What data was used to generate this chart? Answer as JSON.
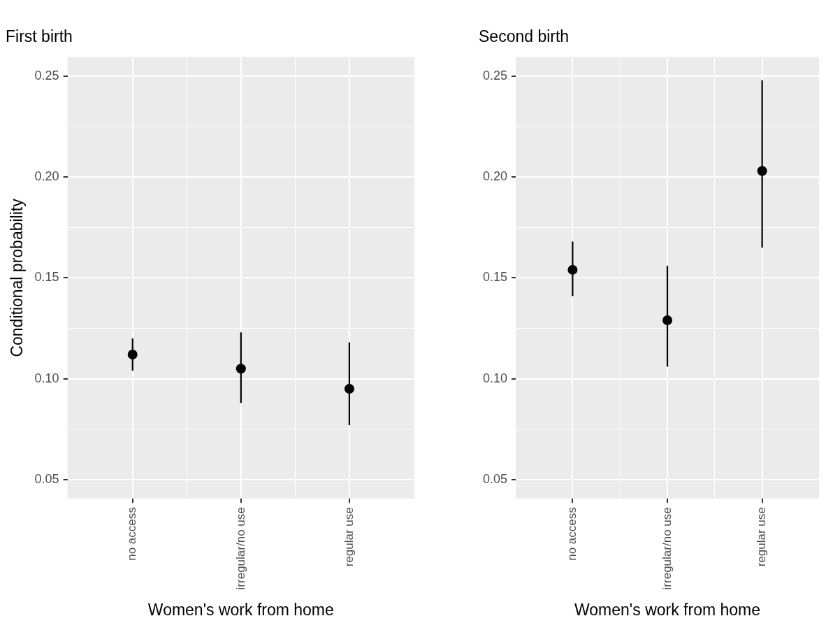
{
  "chart_data": [
    {
      "type": "scatter",
      "title": "First birth",
      "xlabel": "Women's work from home",
      "ylabel": "Conditional probability",
      "categories": [
        "no access",
        "irregular/no use",
        "regular use"
      ],
      "series": [
        {
          "color": "#000000",
          "values": [
            0.112,
            0.105,
            0.095
          ],
          "errors": [
            [
              0.104,
              0.12
            ],
            [
              0.088,
              0.123
            ],
            [
              0.077,
              0.118
            ]
          ]
        }
      ],
      "ylim": [
        0.0405,
        0.2595
      ],
      "yticks": [
        {
          "value": 0.05,
          "label": "0.05"
        },
        {
          "value": 0.075,
          "label": null
        },
        {
          "value": 0.1,
          "label": "0.10"
        },
        {
          "value": 0.125,
          "label": null
        },
        {
          "value": 0.15,
          "label": "0.15"
        },
        {
          "value": 0.175,
          "label": null
        },
        {
          "value": 0.2,
          "label": "0.20"
        },
        {
          "value": 0.225,
          "label": null
        },
        {
          "value": 0.25,
          "label": "0.25"
        }
      ],
      "grid": true,
      "marker": "circle",
      "legend": false
    },
    {
      "type": "scatter",
      "title": "Second birth",
      "xlabel": "Women's work from home",
      "categories": [
        "no access",
        "irregular/no use",
        "regular use"
      ],
      "series": [
        {
          "color": "#000000",
          "values": [
            0.154,
            0.129,
            0.203
          ],
          "errors": [
            [
              0.141,
              0.168
            ],
            [
              0.106,
              0.156
            ],
            [
              0.165,
              0.248
            ]
          ]
        }
      ],
      "ylim": [
        0.0405,
        0.2595
      ],
      "yticks": [
        {
          "value": 0.05,
          "label": "0.05"
        },
        {
          "value": 0.075,
          "label": null
        },
        {
          "value": 0.1,
          "label": "0.10"
        },
        {
          "value": 0.125,
          "label": null
        },
        {
          "value": 0.15,
          "label": "0.15"
        },
        {
          "value": 0.175,
          "label": null
        },
        {
          "value": 0.2,
          "label": "0.20"
        },
        {
          "value": 0.225,
          "label": null
        },
        {
          "value": 0.25,
          "label": "0.25"
        }
      ],
      "grid": true,
      "marker": "circle",
      "legend": false
    }
  ]
}
